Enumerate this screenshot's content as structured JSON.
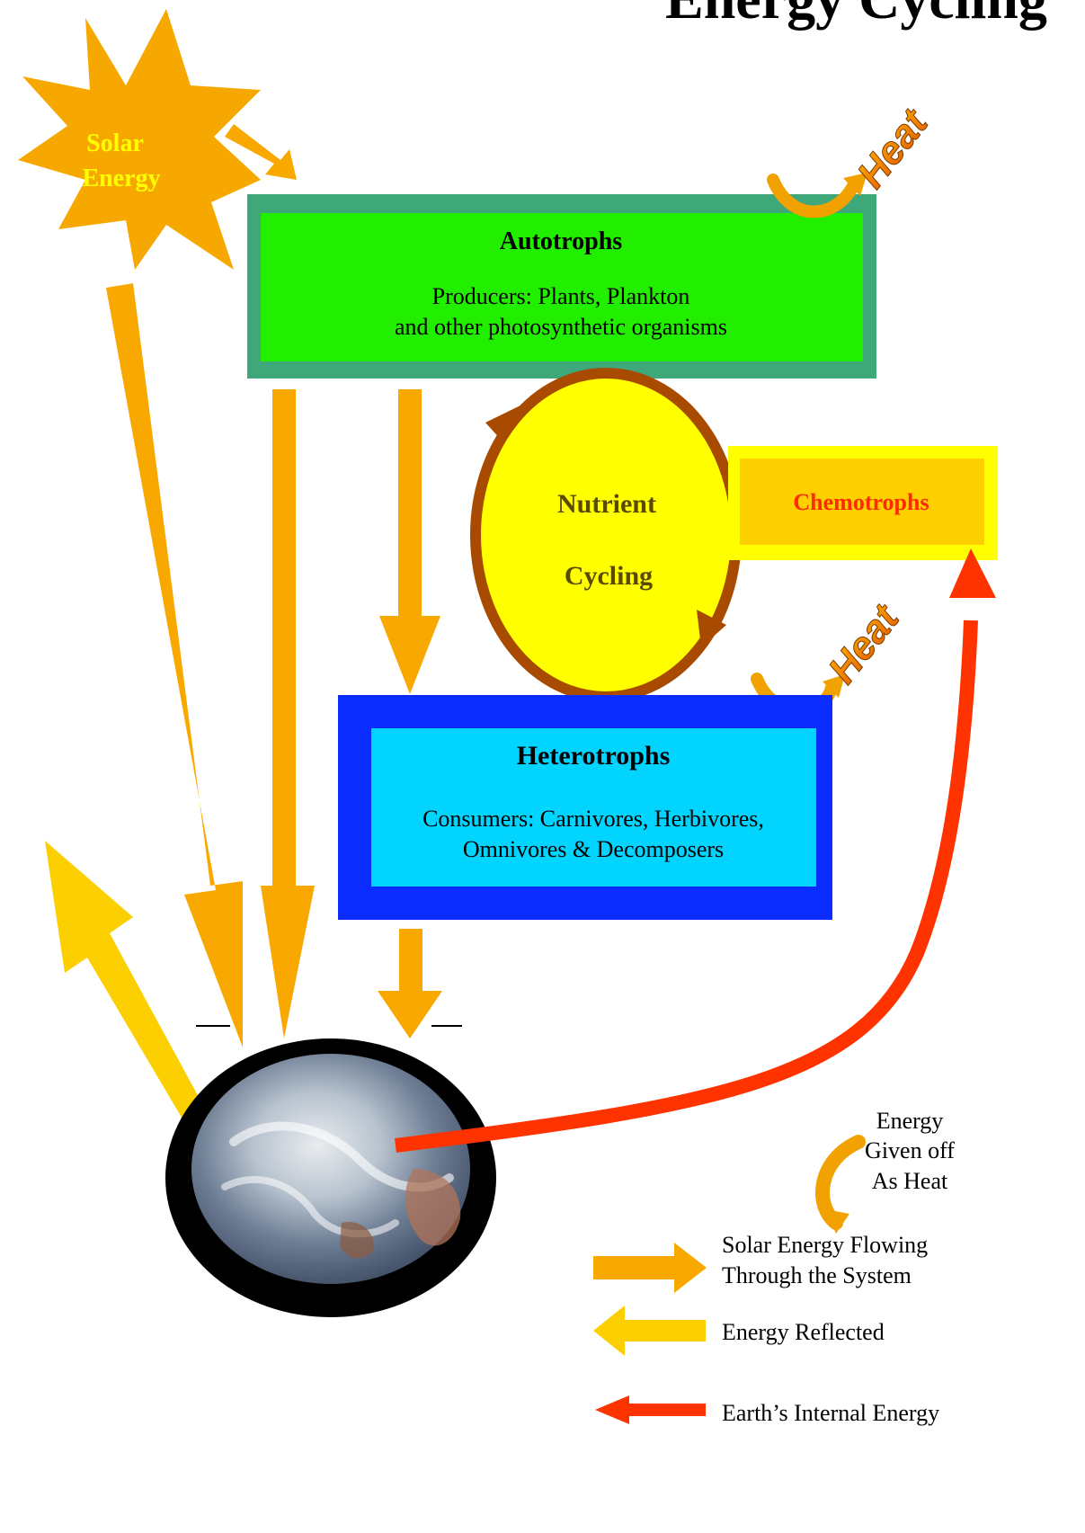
{
  "title": "Energy Cycling",
  "colors": {
    "solar_arrow": "#f9a800",
    "reflected_arrow": "#fcd000",
    "internal_arrow": "#ff3300",
    "autotroph_outer": "#3ea87a",
    "autotroph_inner": "#22ee00",
    "heterotroph_outer": "#0a2cff",
    "heterotroph_inner": "#00d4ff",
    "nutrient_fill": "#ffff00",
    "nutrient_stroke": "#a84a00",
    "chemotroph_outer": "#ffff00",
    "chemotroph_inner": "#ffd000",
    "chemotroph_text": "#ff2a00",
    "sun": "#f7a800",
    "sun_text": "#ffff00"
  },
  "sun": {
    "line1": "Solar",
    "line2": "Energy"
  },
  "autotrophs": {
    "title": "Autotrophs",
    "line1": "Producers: Plants, Plankton",
    "line2": "and other photosynthetic organisms"
  },
  "nutrient": {
    "line1": "Nutrient",
    "line2": "Cycling"
  },
  "chemotrophs": {
    "label": "Chemotrophs"
  },
  "heterotrophs": {
    "title": "Heterotrophs",
    "line1": "Consumers:  Carnivores, Herbivores,",
    "line2": "Omnivores &  Decomposers"
  },
  "heat_label": "Heat",
  "legend": {
    "heat_line1": "Energy",
    "heat_line2": "Given off",
    "heat_line3": "As Heat",
    "solar_line1": "Solar Energy Flowing",
    "solar_line2": "Through the System",
    "reflected": "Energy Reflected",
    "internal": "Earth’s Internal Energy"
  }
}
